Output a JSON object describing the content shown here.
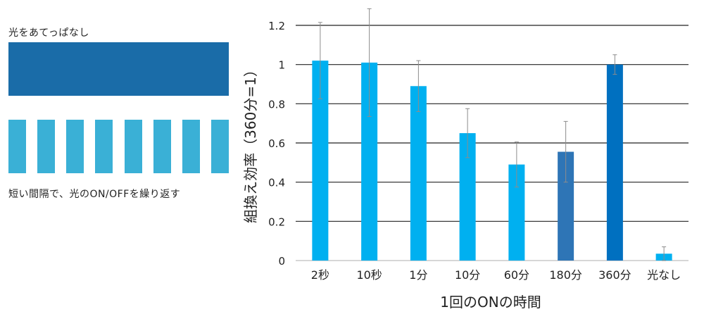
{
  "legend": {
    "continuous_label": "光をあてっぱなし",
    "pulsed_label": "短い間隔で、光のON/OFFを繰り返す",
    "continuous_color": "#1a6ca8",
    "pulsed_color": "#3ab0d6",
    "pulse_count": 8
  },
  "chart_data": {
    "type": "bar",
    "xlabel": "1回のONの時間",
    "ylabel": "組換え効率（360分=1）",
    "ylim": [
      0,
      1.2
    ],
    "yticks": [
      "0",
      "0.2",
      "0.4",
      "0.6",
      "0.8",
      "1",
      "1.2"
    ],
    "grid": true,
    "categories": [
      "2秒",
      "10秒",
      "1分",
      "10分",
      "60分",
      "180分",
      "360分",
      "光なし"
    ],
    "values": [
      1.02,
      1.01,
      0.89,
      0.65,
      0.49,
      0.555,
      1.0,
      0.035
    ],
    "error": [
      0.195,
      0.275,
      0.13,
      0.125,
      0.115,
      0.155,
      0.05,
      0.035
    ],
    "colors": [
      "#00b0f0",
      "#00b0f0",
      "#00b0f0",
      "#00b0f0",
      "#00b0f0",
      "#2e75b6",
      "#0070c0",
      "#00b0f0"
    ]
  }
}
